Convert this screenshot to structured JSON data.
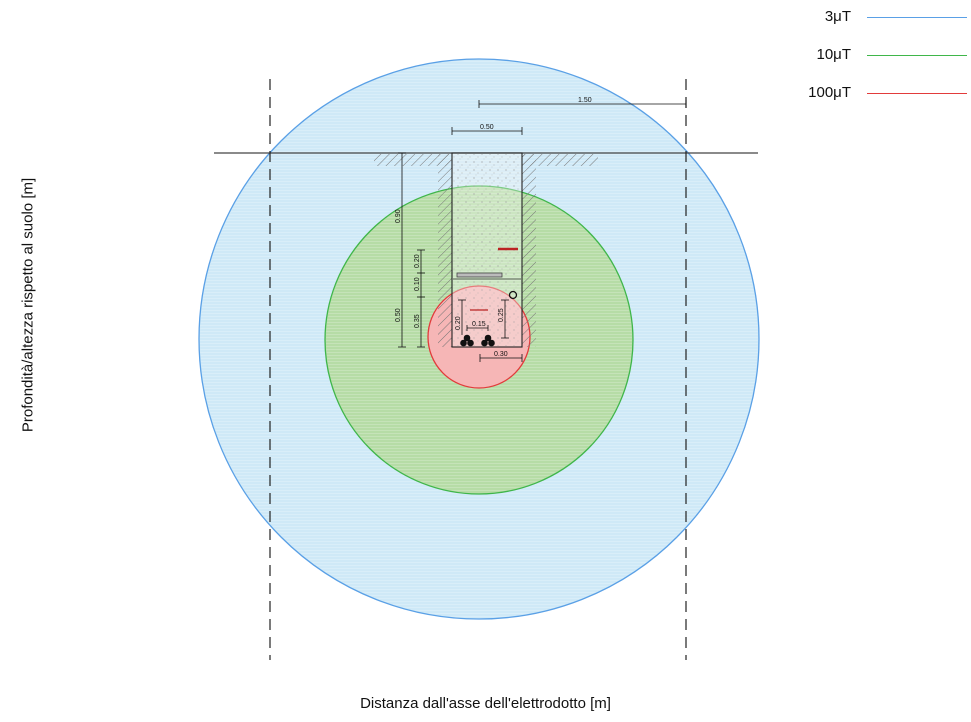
{
  "legend": [
    {
      "label": "3μT",
      "color": "#5aa0e6"
    },
    {
      "label": "10μT",
      "color": "#3fb64a"
    },
    {
      "label": "100μT",
      "color": "#e23b3b"
    }
  ],
  "axes": {
    "xlabel": "Distanza dall'asse dell'elettrodotto [m]",
    "ylabel": "Profondità/altezza rispetto al suolo [m]"
  },
  "zones": [
    {
      "name": "3μT",
      "fill": "#cfe9f7",
      "stroke": "#5aa0e6"
    },
    {
      "name": "10μT",
      "fill": "#b6dca6",
      "stroke": "#3fb64a"
    },
    {
      "name": "100μT",
      "fill": "#f6b6b6",
      "stroke": "#e23b3b"
    }
  ],
  "dimensions": {
    "top_span": "1.50",
    "trench_width": "0.50",
    "depth_total": "0.90",
    "depth_a": "0.20",
    "depth_b": "0.10",
    "depth_c": "0.35",
    "depth_d": "0.50",
    "cable_depth": "0.20",
    "cable_spacing": "0.15",
    "right_depth": "0.25",
    "bottom_width": "0.30"
  }
}
